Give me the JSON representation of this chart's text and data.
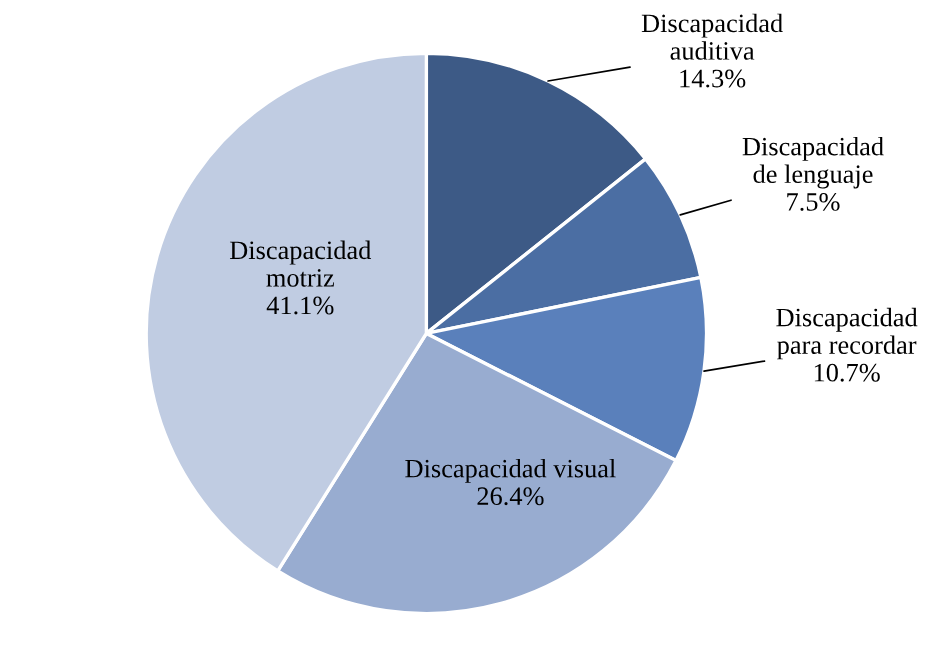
{
  "chart_data": {
    "type": "pie",
    "categories": [
      "Discapacidad\nauditiva",
      "Discapacidad\nde lenguaje",
      "Discapacidad\npara recordar",
      "Discapacidad visual",
      "Discapacidad\nmotriz"
    ],
    "values": [
      14.3,
      7.5,
      10.7,
      26.4,
      41.1
    ],
    "colors": [
      "#3d5a86",
      "#4b6ea3",
      "#5a80bb",
      "#98acd0",
      "#c0cce2"
    ],
    "value_labels": [
      "14.3%",
      "7.5%",
      "10.7%",
      "26.4%",
      "41.1%"
    ]
  }
}
